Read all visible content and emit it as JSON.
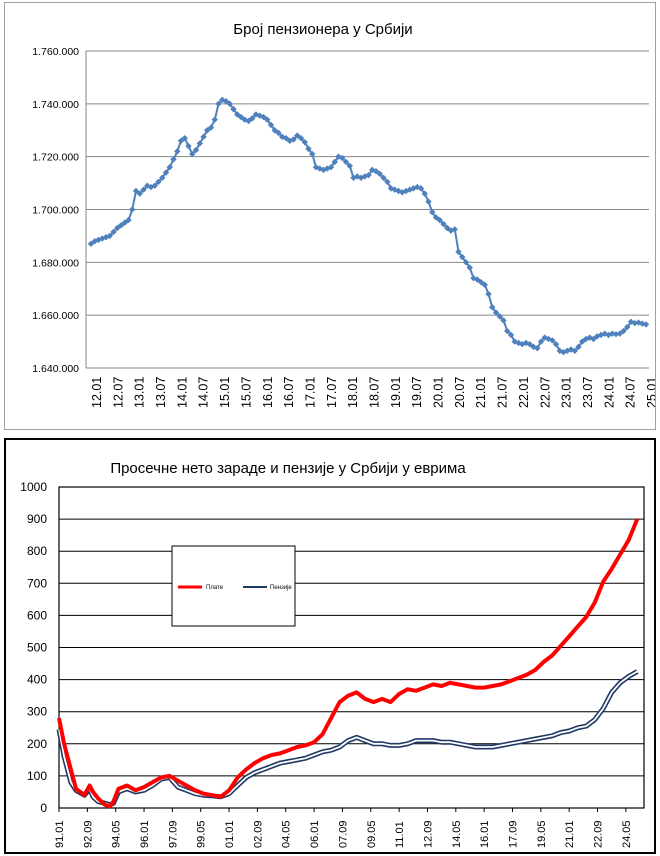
{
  "chart_data": [
    {
      "type": "line",
      "title": "Број пензионера у Србији",
      "ylim": [
        1640000,
        1760000
      ],
      "y_ticks": [
        "1.640.000",
        "1.660.000",
        "1.680.000",
        "1.700.000",
        "1.720.000",
        "1.740.000",
        "1.760.000"
      ],
      "x_tick_labels": [
        "12.01",
        "12.07",
        "13.01",
        "13.07",
        "14.01",
        "14.07",
        "15.01",
        "15.07",
        "16.01",
        "16.07",
        "17.01",
        "17.07",
        "18.01",
        "18.07",
        "19.01",
        "19.07",
        "20.01",
        "20.07",
        "21.01",
        "21.07",
        "22.01",
        "22.07",
        "23.01",
        "23.07",
        "24.01",
        "24.07",
        "25.01"
      ],
      "grid": true,
      "series": [
        {
          "color": "#4f81bd",
          "marker": "diamond",
          "x_start": "2012-01",
          "x_step_months": 1,
          "values": [
            1687000,
            1688000,
            1688500,
            1689000,
            1689500,
            1690000,
            1691500,
            1693000,
            1694000,
            1695000,
            1696000,
            1700000,
            1707000,
            1706000,
            1707500,
            1709000,
            1708500,
            1709000,
            1710500,
            1712000,
            1714000,
            1716000,
            1719000,
            1722000,
            1726000,
            1727000,
            1724000,
            1721000,
            1722500,
            1725000,
            1727500,
            1730000,
            1731000,
            1734000,
            1740000,
            1741500,
            1741000,
            1740000,
            1738000,
            1736000,
            1735000,
            1734000,
            1733500,
            1734500,
            1736000,
            1735500,
            1735000,
            1734000,
            1732000,
            1730000,
            1729000,
            1727500,
            1727000,
            1726000,
            1726500,
            1728000,
            1727000,
            1725500,
            1723000,
            1721000,
            1716000,
            1715500,
            1715000,
            1715500,
            1716000,
            1718000,
            1720000,
            1719500,
            1718000,
            1716500,
            1712000,
            1712500,
            1712000,
            1712500,
            1713000,
            1715000,
            1714500,
            1713500,
            1712000,
            1710500,
            1708000,
            1707500,
            1707000,
            1706500,
            1707000,
            1707500,
            1708000,
            1708500,
            1708000,
            1706000,
            1703000,
            1699000,
            1697000,
            1696000,
            1694500,
            1693000,
            1692000,
            1692500,
            1684000,
            1682000,
            1680000,
            1678000,
            1674000,
            1673500,
            1672500,
            1671500,
            1668000,
            1663000,
            1661000,
            1659500,
            1658000,
            1654000,
            1652500,
            1650000,
            1649500,
            1649000,
            1649500,
            1649000,
            1648000,
            1647500,
            1650000,
            1651500,
            1651000,
            1650500,
            1649000,
            1646500,
            1646000,
            1646500,
            1647000,
            1646500,
            1648000,
            1650000,
            1651000,
            1651500,
            1651000,
            1652000,
            1652500,
            1653000,
            1652500,
            1653000,
            1652800,
            1653000,
            1654000,
            1655500,
            1657500,
            1657000,
            1657200,
            1656800,
            1656500
          ]
        }
      ]
    },
    {
      "type": "line",
      "title": "Просечне нето зараде и пензије у Србији у еврима",
      "ylim": [
        0,
        1000
      ],
      "y_ticks": [
        "0",
        "100",
        "200",
        "300",
        "400",
        "500",
        "600",
        "700",
        "800",
        "900",
        "1000"
      ],
      "x_tick_labels": [
        "91.01",
        "92.09",
        "94.05",
        "96.01",
        "97.09",
        "99.05",
        "01.01",
        "02.09",
        "04.05",
        "06.01",
        "07.09",
        "09.05",
        "11.01",
        "12.09",
        "14.05",
        "16.01",
        "17.09",
        "19.05",
        "21.01",
        "22.09",
        "24.05"
      ],
      "grid": true,
      "legend_position": "upper-left",
      "series": [
        {
          "name": "Плате",
          "color": "#ff0000",
          "points": [
            [
              1991.0,
              280
            ],
            [
              1991.3,
              200
            ],
            [
              1991.7,
              120
            ],
            [
              1992.0,
              60
            ],
            [
              1992.5,
              40
            ],
            [
              1992.8,
              70
            ],
            [
              1993.0,
              50
            ],
            [
              1993.3,
              30
            ],
            [
              1993.7,
              10
            ],
            [
              1994.0,
              5
            ],
            [
              1994.2,
              20
            ],
            [
              1994.5,
              60
            ],
            [
              1995.0,
              70
            ],
            [
              1995.5,
              55
            ],
            [
              1996.0,
              65
            ],
            [
              1996.5,
              80
            ],
            [
              1997.0,
              95
            ],
            [
              1997.5,
              100
            ],
            [
              1998.0,
              85
            ],
            [
              1998.5,
              70
            ],
            [
              1999.0,
              55
            ],
            [
              1999.5,
              45
            ],
            [
              2000.0,
              40
            ],
            [
              2000.5,
              35
            ],
            [
              2001.0,
              55
            ],
            [
              2001.5,
              95
            ],
            [
              2002.0,
              120
            ],
            [
              2002.5,
              140
            ],
            [
              2003.0,
              155
            ],
            [
              2003.5,
              165
            ],
            [
              2004.0,
              170
            ],
            [
              2004.5,
              180
            ],
            [
              2005.0,
              190
            ],
            [
              2005.5,
              195
            ],
            [
              2006.0,
              205
            ],
            [
              2006.5,
              230
            ],
            [
              2007.0,
              280
            ],
            [
              2007.5,
              330
            ],
            [
              2008.0,
              350
            ],
            [
              2008.5,
              360
            ],
            [
              2009.0,
              340
            ],
            [
              2009.5,
              330
            ],
            [
              2010.0,
              340
            ],
            [
              2010.5,
              330
            ],
            [
              2011.0,
              355
            ],
            [
              2011.5,
              370
            ],
            [
              2012.0,
              365
            ],
            [
              2012.5,
              375
            ],
            [
              2013.0,
              385
            ],
            [
              2013.5,
              380
            ],
            [
              2014.0,
              390
            ],
            [
              2014.5,
              385
            ],
            [
              2015.0,
              380
            ],
            [
              2015.5,
              375
            ],
            [
              2016.0,
              375
            ],
            [
              2016.5,
              380
            ],
            [
              2017.0,
              385
            ],
            [
              2017.5,
              395
            ],
            [
              2018.0,
              405
            ],
            [
              2018.5,
              415
            ],
            [
              2019.0,
              430
            ],
            [
              2019.5,
              455
            ],
            [
              2020.0,
              475
            ],
            [
              2020.5,
              505
            ],
            [
              2021.0,
              535
            ],
            [
              2021.5,
              565
            ],
            [
              2022.0,
              595
            ],
            [
              2022.5,
              640
            ],
            [
              2023.0,
              705
            ],
            [
              2023.5,
              745
            ],
            [
              2024.0,
              790
            ],
            [
              2024.5,
              835
            ],
            [
              2025.0,
              900
            ]
          ]
        },
        {
          "name": "Пензије",
          "color": "#1f3864",
          "points": [
            [
              1991.0,
              245
            ],
            [
              1991.3,
              160
            ],
            [
              1991.7,
              80
            ],
            [
              1992.0,
              55
            ],
            [
              1992.5,
              40
            ],
            [
              1992.8,
              60
            ],
            [
              1993.0,
              35
            ],
            [
              1993.3,
              20
            ],
            [
              1993.7,
              15
            ],
            [
              1994.0,
              10
            ],
            [
              1994.2,
              15
            ],
            [
              1994.5,
              50
            ],
            [
              1995.0,
              60
            ],
            [
              1995.5,
              50
            ],
            [
              1996.0,
              55
            ],
            [
              1996.5,
              70
            ],
            [
              1997.0,
              90
            ],
            [
              1997.5,
              95
            ],
            [
              1998.0,
              65
            ],
            [
              1998.5,
              55
            ],
            [
              1999.0,
              45
            ],
            [
              1999.5,
              40
            ],
            [
              2000.0,
              38
            ],
            [
              2000.5,
              35
            ],
            [
              2001.0,
              45
            ],
            [
              2001.5,
              70
            ],
            [
              2002.0,
              95
            ],
            [
              2002.5,
              110
            ],
            [
              2003.0,
              120
            ],
            [
              2003.5,
              130
            ],
            [
              2004.0,
              140
            ],
            [
              2004.5,
              145
            ],
            [
              2005.0,
              150
            ],
            [
              2005.5,
              155
            ],
            [
              2006.0,
              165
            ],
            [
              2006.5,
              175
            ],
            [
              2007.0,
              180
            ],
            [
              2007.5,
              190
            ],
            [
              2008.0,
              210
            ],
            [
              2008.5,
              220
            ],
            [
              2009.0,
              210
            ],
            [
              2009.5,
              200
            ],
            [
              2010.0,
              200
            ],
            [
              2010.5,
              195
            ],
            [
              2011.0,
              195
            ],
            [
              2011.5,
              200
            ],
            [
              2012.0,
              210
            ],
            [
              2012.5,
              210
            ],
            [
              2013.0,
              210
            ],
            [
              2013.5,
              205
            ],
            [
              2014.0,
              205
            ],
            [
              2014.5,
              200
            ],
            [
              2015.0,
              195
            ],
            [
              2015.5,
              190
            ],
            [
              2016.0,
              190
            ],
            [
              2016.5,
              190
            ],
            [
              2017.0,
              195
            ],
            [
              2017.5,
              200
            ],
            [
              2018.0,
              205
            ],
            [
              2018.5,
              210
            ],
            [
              2019.0,
              215
            ],
            [
              2019.5,
              220
            ],
            [
              2020.0,
              225
            ],
            [
              2020.5,
              235
            ],
            [
              2021.0,
              240
            ],
            [
              2021.5,
              250
            ],
            [
              2022.0,
              255
            ],
            [
              2022.5,
              275
            ],
            [
              2023.0,
              310
            ],
            [
              2023.5,
              360
            ],
            [
              2024.0,
              390
            ],
            [
              2024.5,
              410
            ],
            [
              2025.0,
              425
            ]
          ]
        }
      ]
    }
  ]
}
